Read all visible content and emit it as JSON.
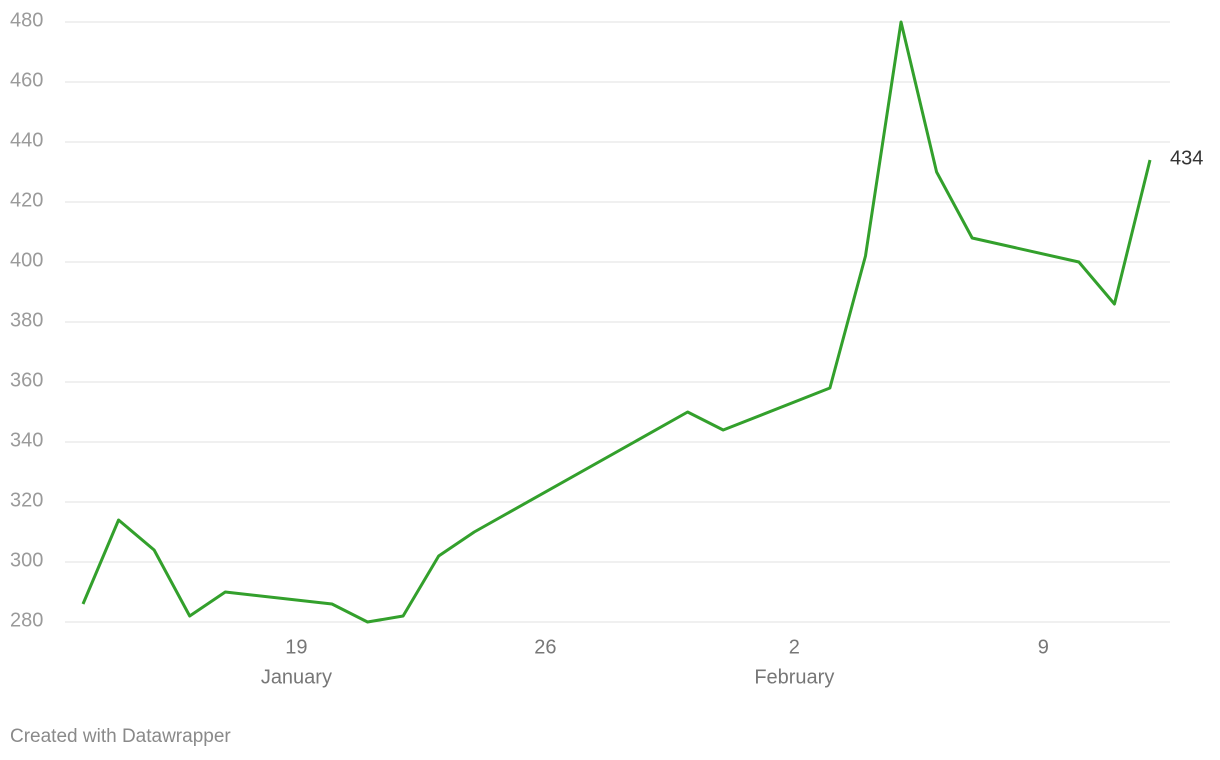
{
  "chart_data": {
    "type": "line",
    "x": [
      "01-13",
      "01-14",
      "01-15",
      "01-16",
      "01-17",
      "01-20",
      "01-21",
      "01-22",
      "01-23",
      "01-24",
      "01-30",
      "01-31",
      "02-03",
      "02-04",
      "02-05",
      "02-06",
      "02-07",
      "02-10",
      "02-11",
      "02-12"
    ],
    "values": [
      286,
      314,
      304,
      282,
      290,
      286,
      280,
      282,
      302,
      310,
      350,
      344,
      358,
      402,
      480,
      430,
      408,
      400,
      386,
      434
    ],
    "color": "#33a02c",
    "xlim": [
      "01-13",
      "02-12"
    ],
    "xticks": [
      {
        "value": "01-19",
        "label": "19",
        "month": "January"
      },
      {
        "value": "01-26",
        "label": "26"
      },
      {
        "value": "02-02",
        "label": "2",
        "month": "February"
      },
      {
        "value": "02-09",
        "label": "9"
      }
    ],
    "ylim": [
      280,
      480
    ],
    "yticks": [
      280,
      300,
      320,
      340,
      360,
      380,
      400,
      420,
      440,
      460,
      480
    ],
    "grid": true,
    "footer": "Created with Datawrapper"
  }
}
